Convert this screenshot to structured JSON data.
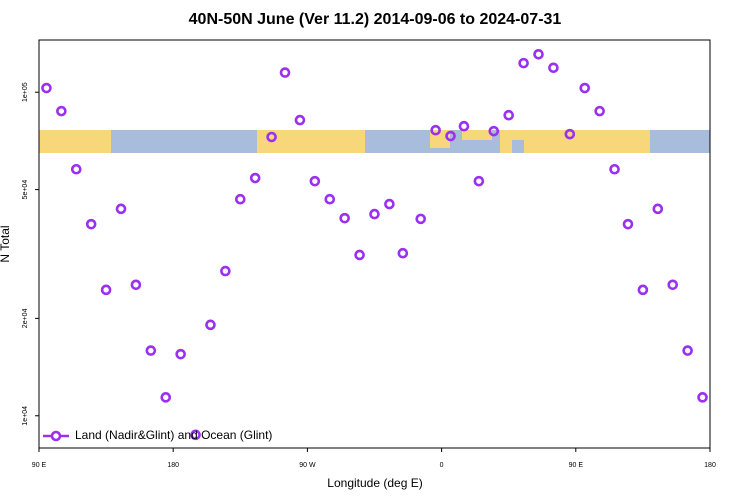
{
  "chart_data": {
    "type": "scatter",
    "title": "40N-50N June (Ver 11.2)   2014-09-06 to 2024-07-31",
    "x_label": "Longitude (deg E)",
    "y_label": "N Total",
    "log_y": true,
    "grid": false,
    "legend_position": "bottom-left",
    "xlim": [
      90,
      540
    ],
    "xticks": [
      {
        "value": 90,
        "label": "90 E"
      },
      {
        "value": 180,
        "label": "180"
      },
      {
        "value": 270,
        "label": "90 W"
      },
      {
        "value": 360,
        "label": "0"
      },
      {
        "value": 450,
        "label": "90 E"
      },
      {
        "value": 540,
        "label": "180"
      }
    ],
    "ylim": [
      7950,
      145000
    ],
    "yticks": [
      {
        "value": 10000,
        "label": "1e+04"
      },
      {
        "value": 20000,
        "label": "2e+04"
      },
      {
        "value": 50000,
        "label": "5e+04"
      },
      {
        "value": 100000,
        "label": "1e+05"
      }
    ],
    "series": [
      {
        "name": "Land (Nadir&Glint) and Ocean (Glint)",
        "color": "#9b30f0",
        "x": [
          95,
          105,
          115,
          125,
          135,
          145,
          155,
          165,
          175,
          185,
          195,
          205,
          215,
          225,
          235,
          246,
          255,
          265,
          275,
          285,
          295,
          305,
          315,
          325,
          334,
          346,
          356,
          366,
          375,
          385,
          395,
          405,
          415,
          425,
          435,
          446,
          456,
          466,
          476,
          485,
          495,
          505,
          515,
          525,
          535
        ],
        "values": [
          103000,
          87400,
          57800,
          39100,
          24500,
          43600,
          25400,
          15900,
          11400,
          15500,
          8730,
          19100,
          28000,
          46700,
          54300,
          72700,
          115000,
          82000,
          53100,
          46700,
          40800,
          31400,
          42000,
          45100,
          31800,
          40600,
          76300,
          73200,
          78500,
          53100,
          75800,
          84900,
          123000,
          131000,
          119000,
          74200,
          103000,
          87400,
          57800,
          39100,
          24500,
          43600,
          25400,
          15900,
          11400
        ]
      }
    ]
  }
}
